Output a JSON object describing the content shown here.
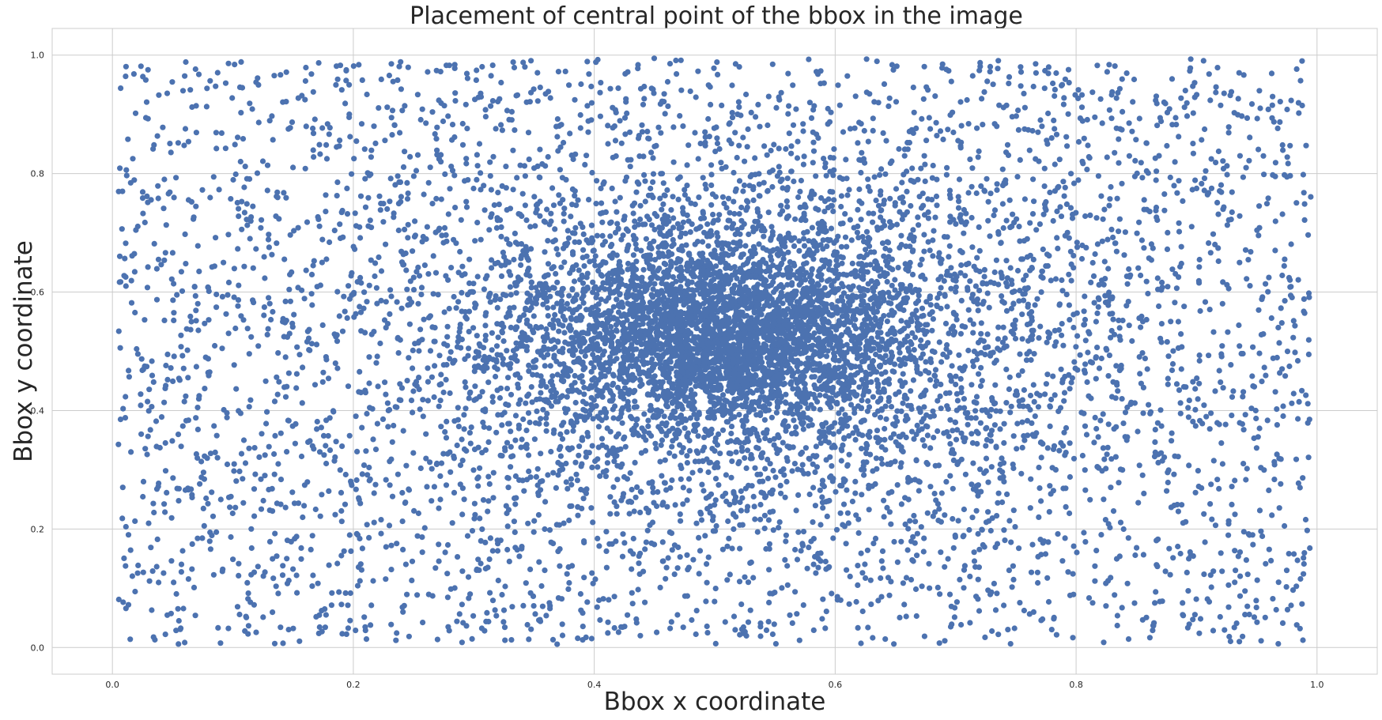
{
  "chart_data": {
    "type": "scatter",
    "title": "Placement of central point of the bbox in the image",
    "xlabel": "Bbox x coordinate",
    "ylabel": "Bbox y coordinate",
    "xlim": [
      -0.05,
      1.05
    ],
    "ylim": [
      -0.045,
      1.045
    ],
    "x_ticks": [
      0.0,
      0.2,
      0.4,
      0.6,
      0.8,
      1.0
    ],
    "x_tick_labels": [
      "0.0",
      "0.2",
      "0.4",
      "0.6",
      "0.8",
      "1.0"
    ],
    "y_ticks": [
      0.0,
      0.2,
      0.4,
      0.6,
      0.8,
      1.0
    ],
    "y_tick_labels": [
      "0.0",
      "0.2",
      "0.4",
      "0.6",
      "0.8",
      "1.0"
    ],
    "grid": true,
    "legend": "none",
    "marker_color": "#4c72b0",
    "series": [
      {
        "distribution": [
          {
            "kind": "uniform",
            "weight": 0.4,
            "x_range": [
              0.005,
              0.995
            ],
            "y_range": [
              0.005,
              0.995
            ]
          },
          {
            "kind": "gaussian",
            "weight": 0.32,
            "x_mean": 0.52,
            "y_mean": 0.52,
            "x_sd": 0.16,
            "y_sd": 0.17
          },
          {
            "kind": "gaussian",
            "weight": 0.28,
            "x_mean": 0.51,
            "y_mean": 0.53,
            "x_sd": 0.075,
            "y_sd": 0.075
          }
        ],
        "count": 9000
      }
    ]
  }
}
